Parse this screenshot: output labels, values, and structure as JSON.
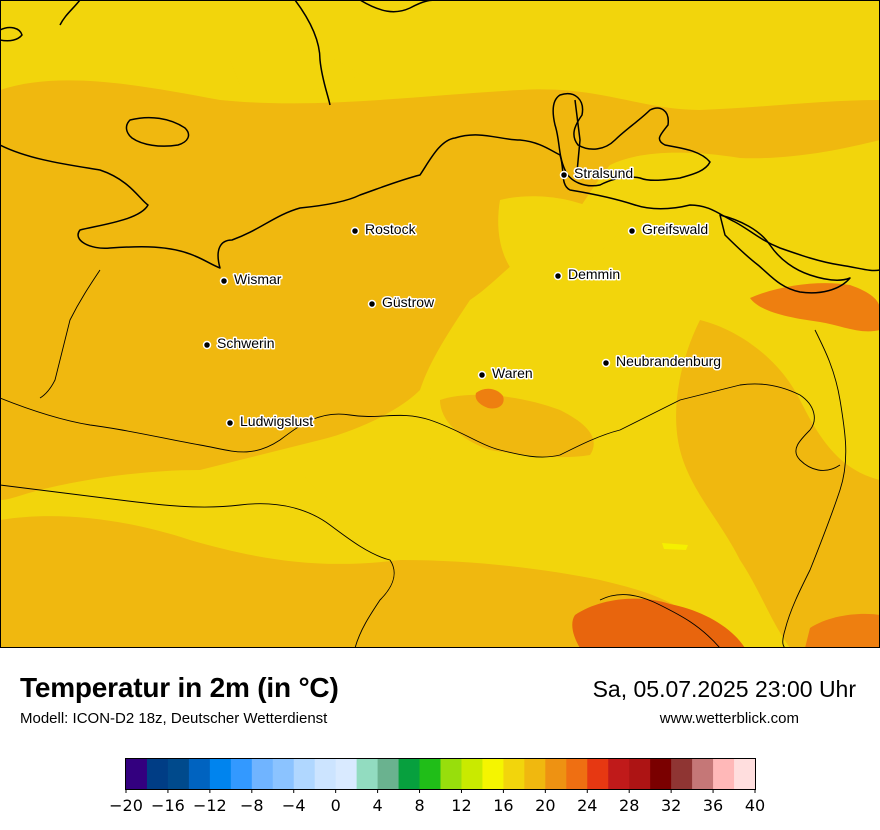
{
  "title": "Temperatur in 2m (in °C)",
  "subtitle": "Modell: ICON-D2 18z, Deutscher Wetterdienst",
  "datetime": "Sa, 05.07.2025 23:00 Uhr",
  "website": "www.wetterblick.com",
  "cities": [
    {
      "name": "Stralsund"
    },
    {
      "name": "Rostock"
    },
    {
      "name": "Greifswald"
    },
    {
      "name": "Wismar"
    },
    {
      "name": "Demmin"
    },
    {
      "name": "Güstrow"
    },
    {
      "name": "Schwerin"
    },
    {
      "name": "Neubrandenburg"
    },
    {
      "name": "Waren"
    },
    {
      "name": "Ludwigslust"
    }
  ],
  "colors": {
    "base_field": "#f2d50c",
    "warm_field": "#f0b80f",
    "hot_field": "#ee7f10",
    "very_hot_field": "#e8650d",
    "cool_field": "#f5f000",
    "coastline": "#000000"
  },
  "colorbar": {
    "ticks": [
      "−20",
      "−16",
      "−12",
      "−8",
      "−4",
      "0",
      "4",
      "8",
      "12",
      "16",
      "20",
      "24",
      "28",
      "32",
      "36",
      "40"
    ],
    "colors": [
      "#33007f",
      "#003d85",
      "#004a8c",
      "#0063c0",
      "#0084ee",
      "#3399ff",
      "#70b4ff",
      "#8bc3ff",
      "#b0d7ff",
      "#cce4ff",
      "#d9eaff",
      "#92dcc0",
      "#6ab28f",
      "#07a03e",
      "#20be18",
      "#98de0c",
      "#c9ea00",
      "#f5f500",
      "#f2d50c",
      "#f0b80f",
      "#ee9212",
      "#ef6f12",
      "#e63812",
      "#c01a1a",
      "#ad1414",
      "#7a0000",
      "#8f3533",
      "#c57777",
      "#ffb8b8",
      "#ffdede"
    ]
  }
}
